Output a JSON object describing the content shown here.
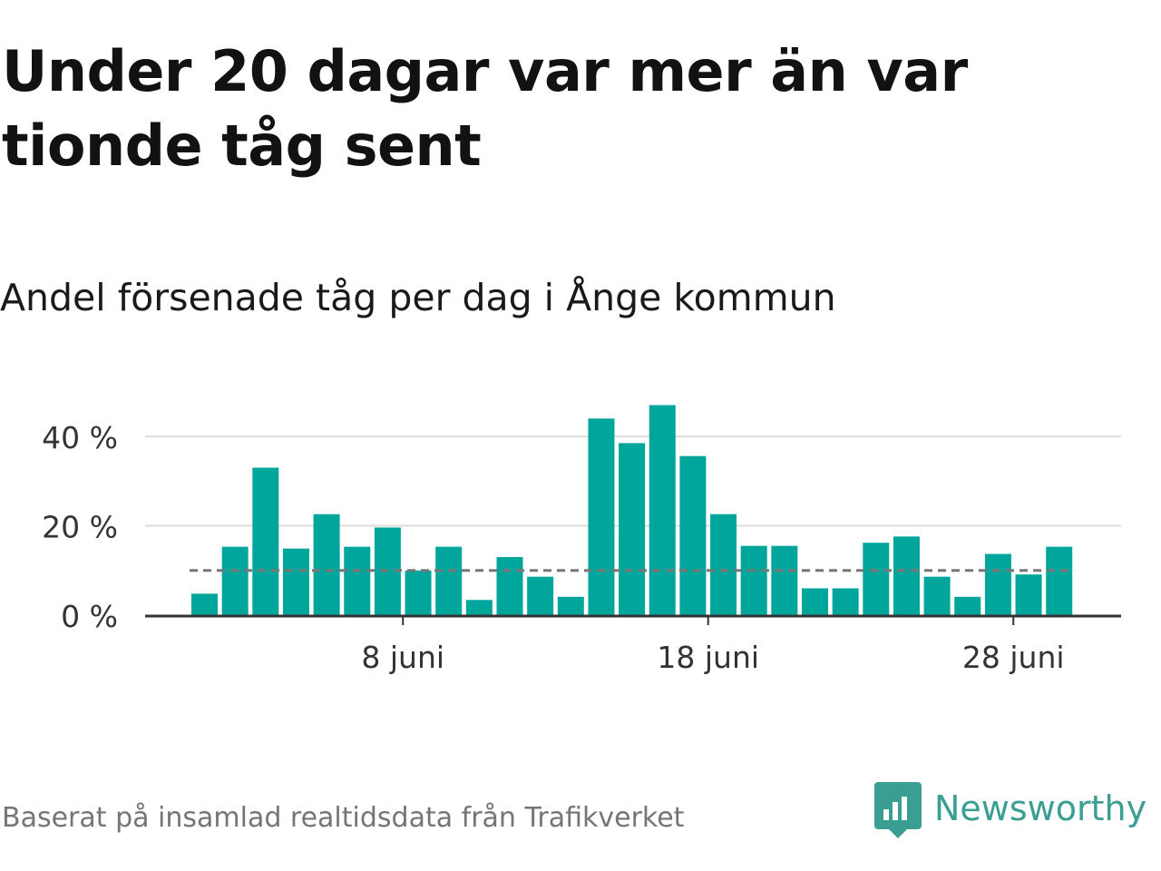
{
  "title": "Under 20 dagar var mer än var tionde tåg sent",
  "subtitle": "Andel försenade tåg per dag i Ånge kommun",
  "footer": "Baserat på insamlad realtidsdata från Trafikverket",
  "brand": {
    "name": "Newsworthy",
    "icon": "newsworthy-logo-icon"
  },
  "colors": {
    "bar": "#00A69C",
    "average_line": "#777777",
    "grid": "#dddddd",
    "brand": "#3a9e92"
  },
  "chart_data": {
    "type": "bar",
    "title": "Andel försenade tåg per dag i Ånge kommun",
    "xlabel": "",
    "ylabel": "",
    "x_unit": "date (juni)",
    "x": [
      "2025-06-01",
      "2025-06-02",
      "2025-06-03",
      "2025-06-04",
      "2025-06-05",
      "2025-06-06",
      "2025-06-07",
      "2025-06-08",
      "2025-06-09",
      "2025-06-10",
      "2025-06-11",
      "2025-06-12",
      "2025-06-13",
      "2025-06-14",
      "2025-06-15",
      "2025-06-16",
      "2025-06-17",
      "2025-06-18",
      "2025-06-19",
      "2025-06-20",
      "2025-06-21",
      "2025-06-22",
      "2025-06-23",
      "2025-06-24",
      "2025-06-25",
      "2025-06-26",
      "2025-06-27",
      "2025-06-28",
      "2025-06-29"
    ],
    "values": [
      4.8,
      15.3,
      33,
      14.9,
      22.6,
      15.3,
      19.6,
      10,
      15.3,
      3.4,
      13,
      8.6,
      4.1,
      44,
      38.5,
      47,
      35.6,
      22.6,
      15.5,
      15.5,
      6,
      6,
      16.2,
      17.6,
      8.6,
      4.1,
      13.7,
      9.1,
      15.3
    ],
    "average": 10,
    "ylim": [
      0,
      50
    ],
    "yticks": [
      0,
      20,
      40
    ],
    "ytick_labels": [
      "0 %",
      "20 %",
      "40 %"
    ],
    "xtick_labels": [
      "8 juni",
      "18 juni",
      "28 juni"
    ],
    "xtick_dates": [
      "2025-06-08",
      "2025-06-18",
      "2025-06-28"
    ],
    "grid": true,
    "legend": "none"
  }
}
